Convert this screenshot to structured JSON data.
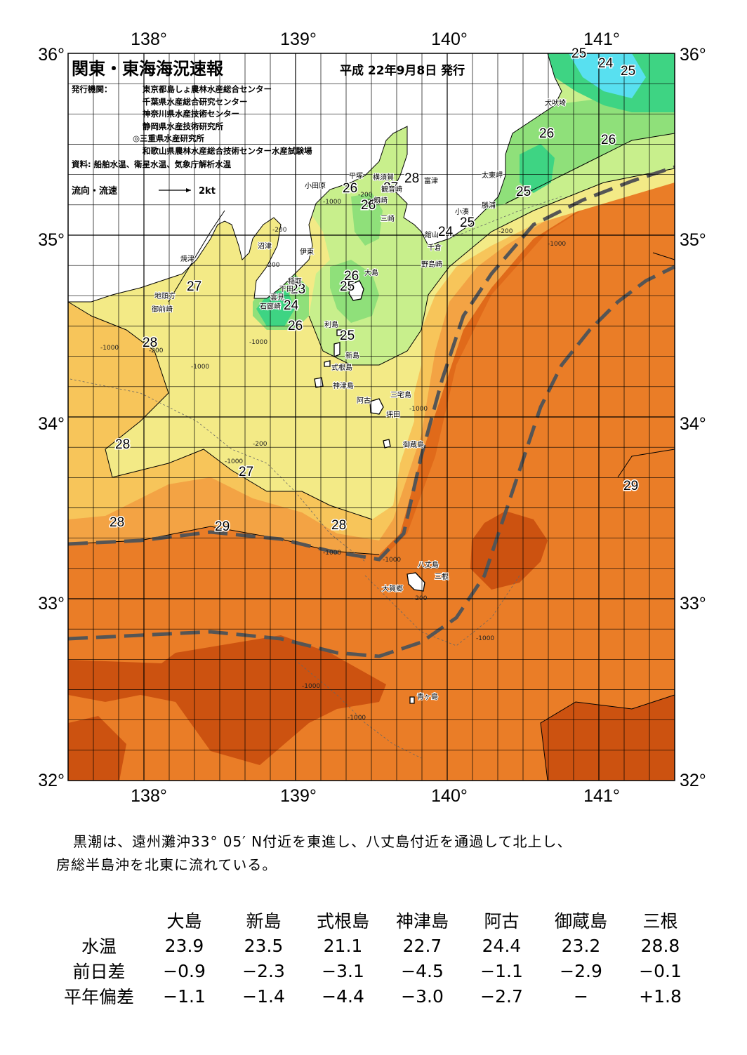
{
  "header": {
    "title": "関東・東海海況速報",
    "date": "平成 22年9月8日 発行",
    "agencies_label": "発行機関：",
    "agencies": [
      "東京都島しょ農林水産総合センター",
      "千葉県水産総合研究センター",
      "神奈川県水産技術センター",
      "静岡県水産技術研究所",
      "◎三重県水産研究所",
      "和歌山県農林水産総合技術センター水産試験場"
    ],
    "sources": "資料: 船舶水温、衛星水温、気象庁解析水温",
    "flow_label": "流向・流速",
    "flow_scale": "2kt"
  },
  "axes": {
    "lon_labels": [
      "138°",
      "139°",
      "140°",
      "141°"
    ],
    "lat_labels": [
      "36°",
      "35°",
      "34°",
      "33°",
      "32°"
    ]
  },
  "isotherm_labels": [
    "25",
    "24",
    "25",
    "26",
    "26",
    "25",
    "28",
    "27",
    "26",
    "26",
    "25",
    "24",
    "23",
    "24",
    "26",
    "26",
    "25",
    "25",
    "27",
    "28",
    "28",
    "27",
    "28",
    "29",
    "28",
    "29"
  ],
  "depth_labels": [
    "-1000",
    "-200",
    "-1000",
    "-200",
    "-1000",
    "-200",
    "-1000",
    "-200",
    "-1000",
    "-1000",
    "-200",
    "-1000",
    "-200",
    "-1000",
    "-1000",
    "-1000",
    "-1000",
    "-200",
    "-200",
    "-1000"
  ],
  "places": {
    "inubozaki": "犬吠埼",
    "taitomisaki": "太東岬",
    "katsuura": "勝浦",
    "kominato": "小湊",
    "futtsu": "富津",
    "yokosuka": "横須賀",
    "kannonzaki": "観音崎",
    "tsurugisaki": "剱崎",
    "misaki": "三崎",
    "hiratsuka": "平塚",
    "odawara": "小田原",
    "tateyama": "館山",
    "chikura": "千倉",
    "nojimazaki": "野島崎",
    "numazu": "沼津",
    "ito": "伊東",
    "inatori": "稲取",
    "shimoda": "下田",
    "kumomi": "雲見",
    "irozaki": "石廊崎",
    "yaizu": "焼津",
    "chitoukata": "地頭方",
    "omaezaki": "御前崎",
    "oshima": "大島",
    "toshima": "利島",
    "niijima": "新島",
    "shikinejima": "式根島",
    "kozushima": "神津島",
    "miyakejima": "三宅島",
    "ako": "阿古",
    "tsubota": "坪田",
    "mikurajima": "御蔵島",
    "hachijojima": "八丈島",
    "mitsune": "三根",
    "okago": "大賀郷",
    "aogashima": "青ヶ島"
  },
  "colors": {
    "t23": "#2bc9a0",
    "t24": "#3ed483",
    "t25": "#8fe07a",
    "t26": "#c8ef8c",
    "t27": "#f3ea86",
    "t28": "#f7c55a",
    "t28b": "#f3a344",
    "t29": "#ea7d27",
    "t29b": "#e06a1a",
    "t30": "#cc5210",
    "cold": "#58e0f0",
    "kuroshio": "#555555"
  },
  "summary": {
    "line1": "黒潮は、遠州灘沖33° 05′ N付近を東進し、八丈島付近を通過して北上し、",
    "line2": "房総半島沖を北東に流れている。"
  },
  "table": {
    "columns": [
      "大島",
      "新島",
      "式根島",
      "神津島",
      "阿古",
      "御蔵島",
      "三根"
    ],
    "rows": [
      {
        "label": "水温",
        "values": [
          "23.9",
          "23.5",
          "21.1",
          "22.7",
          "24.4",
          "23.2",
          "28.8"
        ]
      },
      {
        "label": "前日差",
        "values": [
          "−0.9",
          "−2.3",
          "−3.1",
          "−4.5",
          "−1.1",
          "−2.9",
          "−0.1"
        ]
      },
      {
        "label": "平年偏差",
        "values": [
          "−1.1",
          "−1.4",
          "−4.4",
          "−3.0",
          "−2.7",
          "−",
          "+1.8"
        ]
      }
    ]
  }
}
